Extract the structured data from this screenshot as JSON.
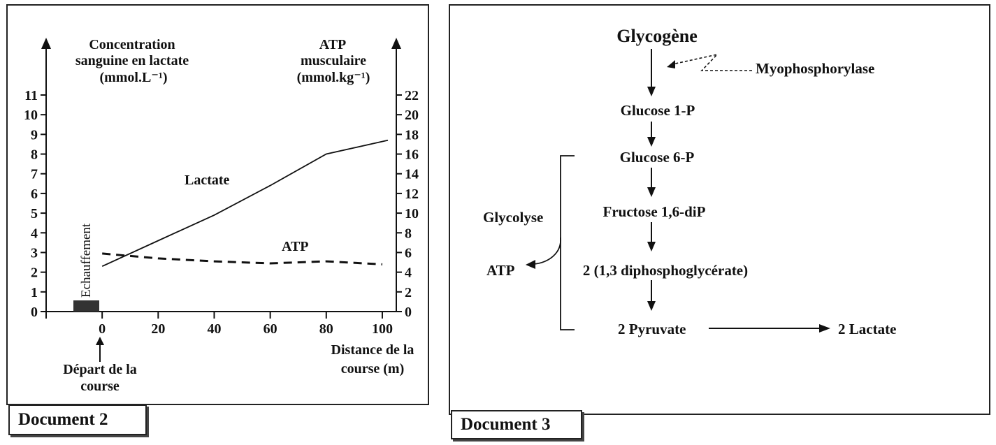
{
  "doc2": {
    "label": "Document 2",
    "y_left_label": [
      "Concentration",
      "sanguine en lactate",
      "(mmol.L⁻¹)"
    ],
    "y_right_label": [
      "ATP",
      "musculaire",
      "(mmol.kg⁻¹)"
    ],
    "x_label": [
      "Distance de la",
      "course (m)"
    ],
    "start_label": [
      "Départ de la",
      "course"
    ],
    "warmup_label": "Echauffement",
    "lactate_label": "Lactate",
    "atp_label": "ATP"
  },
  "chart_data": {
    "type": "line",
    "x": [
      0,
      20,
      40,
      60,
      80,
      100
    ],
    "xlim": [
      -20,
      105
    ],
    "ylim_left": [
      0,
      11
    ],
    "ylim_right": [
      0,
      22
    ],
    "x_ticks": [
      "0",
      "20",
      "40",
      "60",
      "80",
      "100"
    ],
    "y_left_ticks": [
      "0",
      "1",
      "2",
      "3",
      "4",
      "5",
      "6",
      "7",
      "8",
      "9",
      "10",
      "11"
    ],
    "y_right_ticks": [
      "0",
      "2",
      "4",
      "6",
      "8",
      "10",
      "12",
      "14",
      "16",
      "18",
      "20",
      "22"
    ],
    "series": [
      {
        "name": "Lactate",
        "axis": "left",
        "style": "solid",
        "points": [
          [
            0,
            2.3
          ],
          [
            20,
            3.6
          ],
          [
            40,
            4.9
          ],
          [
            60,
            6.4
          ],
          [
            80,
            8.0
          ],
          [
            102,
            8.7
          ]
        ]
      },
      {
        "name": "ATP",
        "axis": "right",
        "style": "dashed",
        "points": [
          [
            0,
            5.9
          ],
          [
            20,
            5.4
          ],
          [
            40,
            5.1
          ],
          [
            60,
            4.9
          ],
          [
            80,
            5.1
          ],
          [
            100,
            4.8
          ]
        ]
      }
    ]
  },
  "doc3": {
    "label": "Document 3",
    "glycogen": "Glycogène",
    "enzyme": "Myophosphorylase",
    "g1p": "Glucose 1-P",
    "g6p": "Glucose 6-P",
    "f16": "Fructose 1,6-diP",
    "dpg": "2 (1,3 diphosphoglycérate)",
    "pyruvate": "2 Pyruvate",
    "lactate": "2 Lactate",
    "glycolysis": "Glycolyse",
    "atp": "ATP"
  }
}
